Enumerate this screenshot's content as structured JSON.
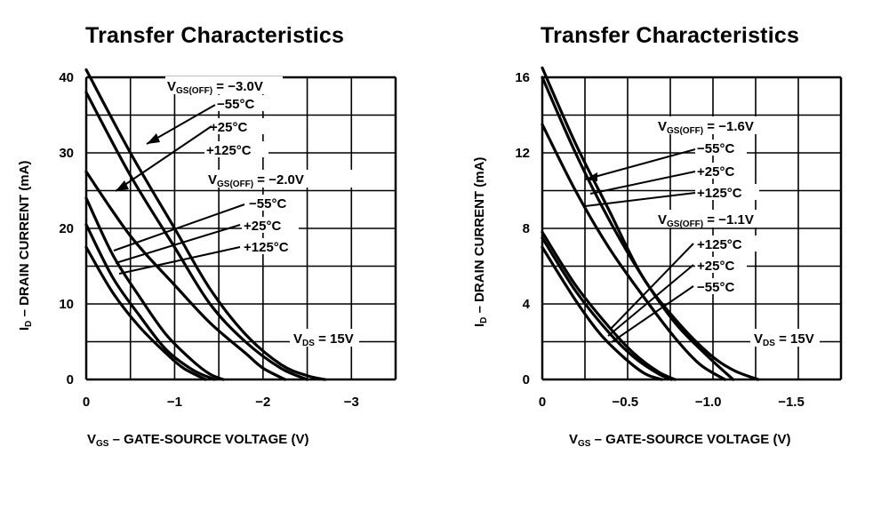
{
  "chart_data": [
    {
      "type": "line",
      "title": "Transfer Characteristics",
      "xlabel": "V GS – GATE-SOURCE VOLTAGE (V)",
      "xlabel_main": "V",
      "xlabel_sub": "GS",
      "xlabel_rest": " – GATE-SOURCE VOLTAGE (V)",
      "ylabel_main": "I",
      "ylabel_sub": "D",
      "ylabel_rest": " – DRAIN CURRENT (mA)",
      "xlim": [
        0,
        -3.5
      ],
      "ylim": [
        0,
        40
      ],
      "x_ticks": [
        0,
        -1,
        -2,
        -3
      ],
      "x_tick_labels": [
        "0",
        "−1",
        "−2",
        "−3"
      ],
      "y_ticks": [
        0,
        10,
        20,
        30,
        40
      ],
      "y_tick_labels": [
        "0",
        "10",
        "20",
        "30",
        "40"
      ],
      "grid": true,
      "series": [
        {
          "x": [
            0,
            -0.5,
            -1.0,
            -1.4,
            -1.8,
            -2.2,
            -2.5,
            -2.7
          ],
          "y": [
            41,
            30,
            20,
            12,
            6,
            2,
            0.5,
            0
          ]
        },
        {
          "x": [
            0,
            -0.5,
            -1.0,
            -1.4,
            -1.8,
            -2.2,
            -2.5
          ],
          "y": [
            38,
            27,
            17.5,
            10,
            5,
            1.5,
            0
          ]
        },
        {
          "x": [
            0,
            -0.5,
            -1.0,
            -1.4,
            -1.8,
            -2.0,
            -2.25
          ],
          "y": [
            27.5,
            19,
            12.5,
            7.5,
            3.5,
            1.5,
            0
          ]
        },
        {
          "x": [
            0,
            -0.3,
            -0.6,
            -0.9,
            -1.2,
            -1.4,
            -1.55
          ],
          "y": [
            24,
            16.5,
            11,
            6,
            2.5,
            0.7,
            0
          ]
        },
        {
          "x": [
            0,
            -0.3,
            -0.6,
            -0.9,
            -1.2,
            -1.45
          ],
          "y": [
            20.5,
            13.5,
            8.5,
            4,
            1.3,
            0
          ]
        },
        {
          "x": [
            0,
            -0.3,
            -0.6,
            -0.9,
            -1.1,
            -1.35
          ],
          "y": [
            17.5,
            11.5,
            7,
            3.5,
            1.5,
            0
          ]
        }
      ],
      "annotations": {
        "group1_param": "V",
        "group1_sub": "GS(OFF)",
        "group1_val": " = −3.0V",
        "g1_t1": "−55°C",
        "g1_t2": "+25°C",
        "g1_t3": "+125°C",
        "group2_param": "V",
        "group2_sub": "GS(OFF)",
        "group2_val": " = −2.0V",
        "g2_t1": "−55°C",
        "g2_t2": "+25°C",
        "g2_t3": "+125°C",
        "vds_main": "V",
        "vds_sub": "DS",
        "vds_val": " = 15V"
      }
    },
    {
      "type": "line",
      "title": "Transfer Characteristics",
      "xlabel_main": "V",
      "xlabel_sub": "GS",
      "xlabel_rest": " – GATE-SOURCE VOLTAGE (V)",
      "ylabel_main": "I",
      "ylabel_sub": "D",
      "ylabel_rest": " – DRAIN CURRENT (mA)",
      "xlim": [
        0,
        -1.8
      ],
      "ylim": [
        0,
        16
      ],
      "x_ticks": [
        0,
        -0.5,
        -1.0,
        -1.5
      ],
      "x_tick_labels": [
        "0",
        "−0.5",
        "−1.0",
        "−1.5"
      ],
      "y_ticks": [
        0,
        4,
        8,
        12,
        16
      ],
      "y_tick_labels": [
        "0",
        "4",
        "8",
        "12",
        "16"
      ],
      "grid": true,
      "series": [
        {
          "x": [
            0,
            -0.2,
            -0.4,
            -0.6,
            -0.8,
            -1.0,
            -1.15,
            -1.3
          ],
          "y": [
            16.5,
            12.5,
            9,
            5.5,
            3.2,
            1.4,
            0.5,
            0
          ]
        },
        {
          "x": [
            0,
            -0.2,
            -0.4,
            -0.6,
            -0.8,
            -1.0,
            -1.15
          ],
          "y": [
            16,
            12,
            8.5,
            5.5,
            3,
            1.2,
            0
          ]
        },
        {
          "x": [
            0,
            -0.2,
            -0.4,
            -0.6,
            -0.8,
            -0.95,
            -1.1
          ],
          "y": [
            13.5,
            10,
            7,
            4.5,
            2.2,
            0.8,
            0
          ]
        },
        {
          "x": [
            0,
            -0.2,
            -0.4,
            -0.55,
            -0.7,
            -0.8
          ],
          "y": [
            7.8,
            5,
            2.8,
            1.4,
            0.4,
            0
          ]
        },
        {
          "x": [
            0,
            -0.2,
            -0.4,
            -0.55,
            -0.7,
            -0.78
          ],
          "y": [
            7.5,
            4.7,
            2.5,
            1.2,
            0.3,
            0
          ]
        },
        {
          "x": [
            0,
            -0.2,
            -0.35,
            -0.5,
            -0.62,
            -0.72
          ],
          "y": [
            7,
            4.2,
            2.4,
            1.1,
            0.3,
            0
          ]
        }
      ],
      "annotations": {
        "group1_param": "V",
        "group1_sub": "GS(OFF)",
        "group1_val": " = −1.6V",
        "g1_t1": "−55°C",
        "g1_t2": "+25°C",
        "g1_t3": "+125°C",
        "group2_param": "V",
        "group2_sub": "GS(OFF)",
        "group2_val": " = −1.1V",
        "g2_t1": "+125°C",
        "g2_t2": "+25°C",
        "g2_t3": "−55°C",
        "vds_main": "V",
        "vds_sub": "DS",
        "vds_val": " = 15V"
      }
    }
  ]
}
